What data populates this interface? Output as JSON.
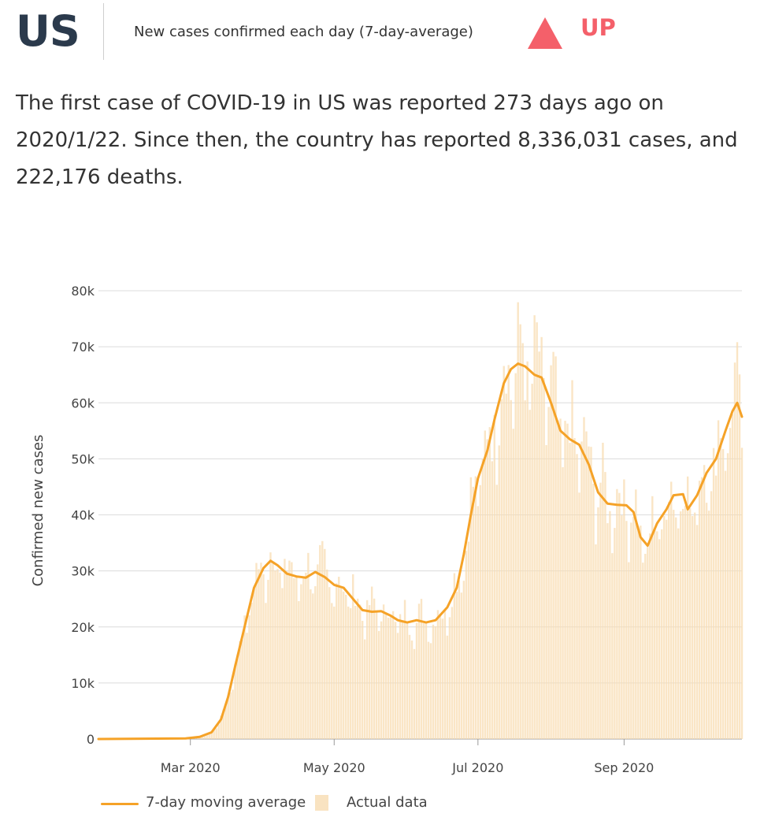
{
  "header": {
    "country": "US",
    "subtitle": "New cases confirmed each day (7-day-average)",
    "trend_label": "UP",
    "trend_color": "#f4606a"
  },
  "summary": "The first case of COVID-19 in US was reported 273 days ago on 2020/1/22. Since then, the country has reported 8,336,031 cases, and 222,176 deaths.",
  "legend": {
    "line_label": "7-day moving average",
    "bar_label": "Actual data"
  },
  "chart_data": {
    "type": "line",
    "ylabel": "Confirmed new cases",
    "ylim": [
      0,
      80000
    ],
    "yticks": [
      0,
      10000,
      20000,
      30000,
      40000,
      50000,
      60000,
      70000,
      80000
    ],
    "ytick_labels": [
      "0",
      "10k",
      "20k",
      "30k",
      "40k",
      "50k",
      "60k",
      "70k",
      "80k"
    ],
    "xlim": [
      "2020-01-22",
      "2020-10-21"
    ],
    "xticks": [
      "2020-03-01",
      "2020-05-01",
      "2020-07-01",
      "2020-09-01"
    ],
    "xtick_labels": [
      "Mar 2020",
      "May 2020",
      "Jul 2020",
      "Sep 2020"
    ],
    "line_color": "#f5a227",
    "bar_color": "#f8dcb2",
    "grid": true,
    "legend_position": "bottom-left",
    "series": [
      {
        "name": "7-day moving average",
        "points": [
          [
            "2020-01-22",
            0
          ],
          [
            "2020-02-28",
            100
          ],
          [
            "2020-03-05",
            400
          ],
          [
            "2020-03-10",
            1200
          ],
          [
            "2020-03-14",
            3500
          ],
          [
            "2020-03-17",
            7500
          ],
          [
            "2020-03-20",
            13000
          ],
          [
            "2020-03-24",
            20000
          ],
          [
            "2020-03-28",
            27000
          ],
          [
            "2020-04-01",
            30500
          ],
          [
            "2020-04-04",
            31800
          ],
          [
            "2020-04-07",
            31000
          ],
          [
            "2020-04-11",
            29500
          ],
          [
            "2020-04-15",
            29000
          ],
          [
            "2020-04-19",
            28800
          ],
          [
            "2020-04-23",
            29800
          ],
          [
            "2020-04-27",
            28900
          ],
          [
            "2020-05-01",
            27500
          ],
          [
            "2020-05-05",
            27000
          ],
          [
            "2020-05-09",
            25000
          ],
          [
            "2020-05-13",
            23000
          ],
          [
            "2020-05-17",
            22700
          ],
          [
            "2020-05-21",
            22800
          ],
          [
            "2020-05-25",
            22000
          ],
          [
            "2020-05-28",
            21200
          ],
          [
            "2020-06-01",
            20800
          ],
          [
            "2020-06-05",
            21200
          ],
          [
            "2020-06-09",
            20800
          ],
          [
            "2020-06-13",
            21200
          ],
          [
            "2020-06-18",
            23500
          ],
          [
            "2020-06-22",
            27000
          ],
          [
            "2020-06-25",
            33000
          ],
          [
            "2020-06-28",
            40000
          ],
          [
            "2020-07-01",
            46500
          ],
          [
            "2020-07-05",
            51500
          ],
          [
            "2020-07-08",
            57000
          ],
          [
            "2020-07-12",
            63500
          ],
          [
            "2020-07-15",
            66000
          ],
          [
            "2020-07-18",
            67000
          ],
          [
            "2020-07-21",
            66500
          ],
          [
            "2020-07-25",
            65000
          ],
          [
            "2020-07-28",
            64500
          ],
          [
            "2020-08-01",
            60000
          ],
          [
            "2020-08-05",
            55000
          ],
          [
            "2020-08-09",
            53500
          ],
          [
            "2020-08-13",
            52500
          ],
          [
            "2020-08-17",
            49000
          ],
          [
            "2020-08-21",
            44000
          ],
          [
            "2020-08-25",
            42000
          ],
          [
            "2020-08-29",
            41800
          ],
          [
            "2020-09-02",
            41700
          ],
          [
            "2020-09-05",
            40500
          ],
          [
            "2020-09-08",
            36000
          ],
          [
            "2020-09-11",
            34500
          ],
          [
            "2020-09-15",
            38500
          ],
          [
            "2020-09-19",
            41000
          ],
          [
            "2020-09-22",
            43500
          ],
          [
            "2020-09-26",
            43700
          ],
          [
            "2020-09-28",
            41000
          ],
          [
            "2020-10-02",
            43500
          ],
          [
            "2020-10-06",
            47500
          ],
          [
            "2020-10-10",
            50000
          ],
          [
            "2020-10-14",
            55000
          ],
          [
            "2020-10-17",
            58500
          ],
          [
            "2020-10-19",
            60000
          ],
          [
            "2020-10-21",
            57500
          ]
        ]
      }
    ]
  }
}
